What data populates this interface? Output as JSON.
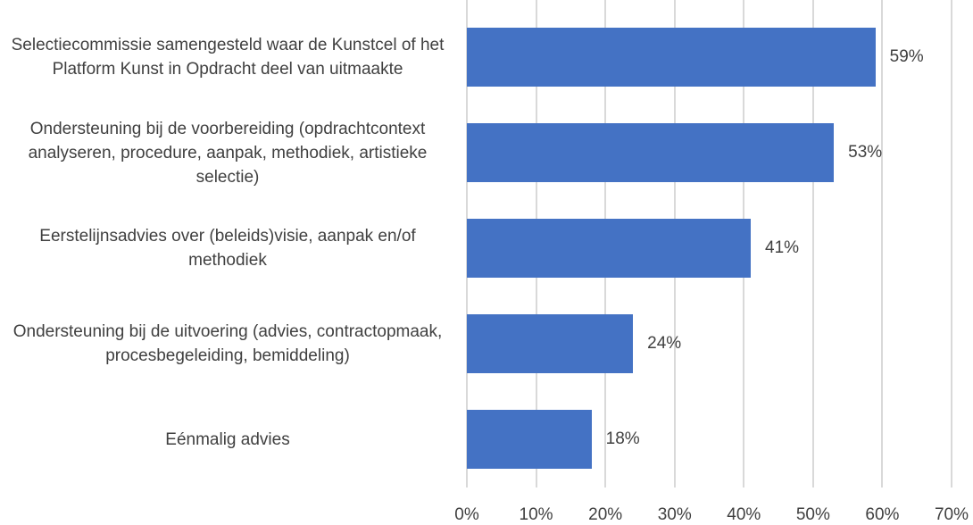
{
  "chart_data": {
    "type": "bar",
    "orientation": "horizontal",
    "categories": [
      "Selectiecommissie samengesteld waar de Kunstcel of het Platform Kunst in Opdracht deel van uitmaakte",
      "Ondersteuning bij de voorbereiding (opdrachtcontext analyseren, procedure, aanpak, methodiek, artistieke selectie)",
      "Eerstelijnsadvies over (beleids)visie, aanpak en/of methodiek",
      "Ondersteuning bij de uitvoering (advies, contractopmaak, procesbegeleiding, bemiddeling)",
      "Eénmalig advies"
    ],
    "values": [
      59,
      53,
      41,
      24,
      18
    ],
    "value_labels": [
      "59%",
      "53%",
      "41%",
      "24%",
      "18%"
    ],
    "color": "#4472c4",
    "xlim": [
      0,
      70
    ],
    "xticks": [
      {
        "value": 0,
        "label": "0%"
      },
      {
        "value": 10,
        "label": "10%"
      },
      {
        "value": 20,
        "label": "20%"
      },
      {
        "value": 30,
        "label": "30%"
      },
      {
        "value": 40,
        "label": "40%"
      },
      {
        "value": 50,
        "label": "50%"
      },
      {
        "value": 60,
        "label": "60%"
      },
      {
        "value": 70,
        "label": "70%"
      }
    ],
    "grid": true
  }
}
